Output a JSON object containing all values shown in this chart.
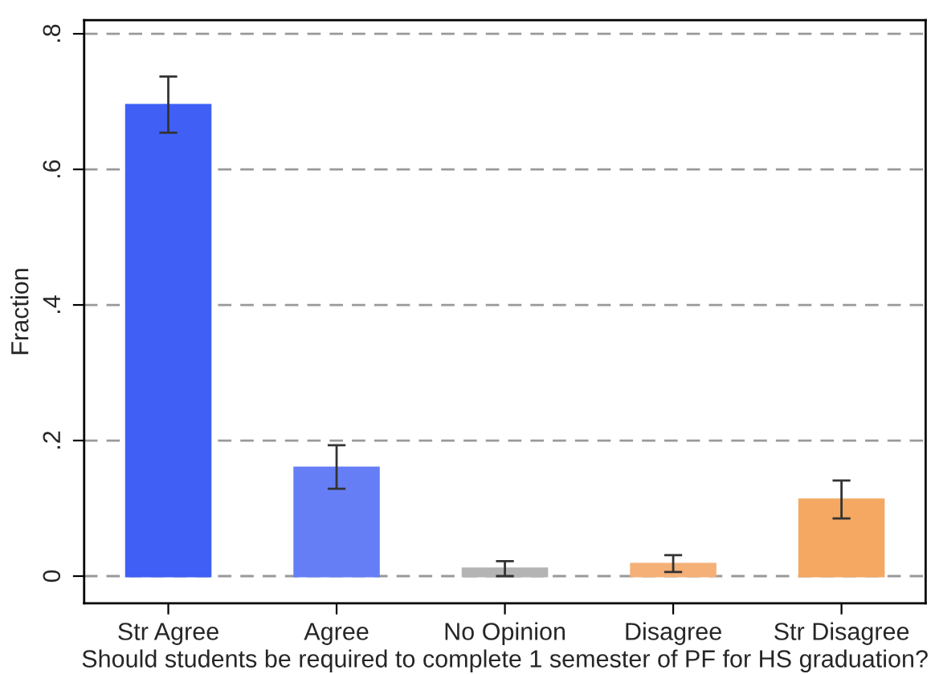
{
  "chart_data": {
    "type": "bar",
    "xlabel": "Should students be required to complete 1 semester of PF for HS graduation?",
    "ylabel": "Fraction",
    "categories": [
      "Str Agree",
      "Agree",
      "No Opinion",
      "Disagree",
      "Str Disagree"
    ],
    "values": [
      0.695,
      0.16,
      0.011,
      0.018,
      0.113
    ],
    "errors": [
      [
        0.654,
        0.737
      ],
      [
        0.129,
        0.193
      ],
      [
        0.0,
        0.022
      ],
      [
        0.006,
        0.031
      ],
      [
        0.085,
        0.141
      ]
    ],
    "colors": [
      "#3f5ff5",
      "#667ef5",
      "#b4b4b4",
      "#f4b077",
      "#f4a862"
    ],
    "ylim": [
      -0.04,
      0.82
    ],
    "yticks": [
      {
        "value": 0,
        "label": "0"
      },
      {
        "value": 0.2,
        "label": ".2"
      },
      {
        "value": 0.4,
        "label": ".4"
      },
      {
        "value": 0.6,
        "label": ".6"
      },
      {
        "value": 0.8,
        "label": ".8"
      }
    ],
    "grid": "y"
  }
}
